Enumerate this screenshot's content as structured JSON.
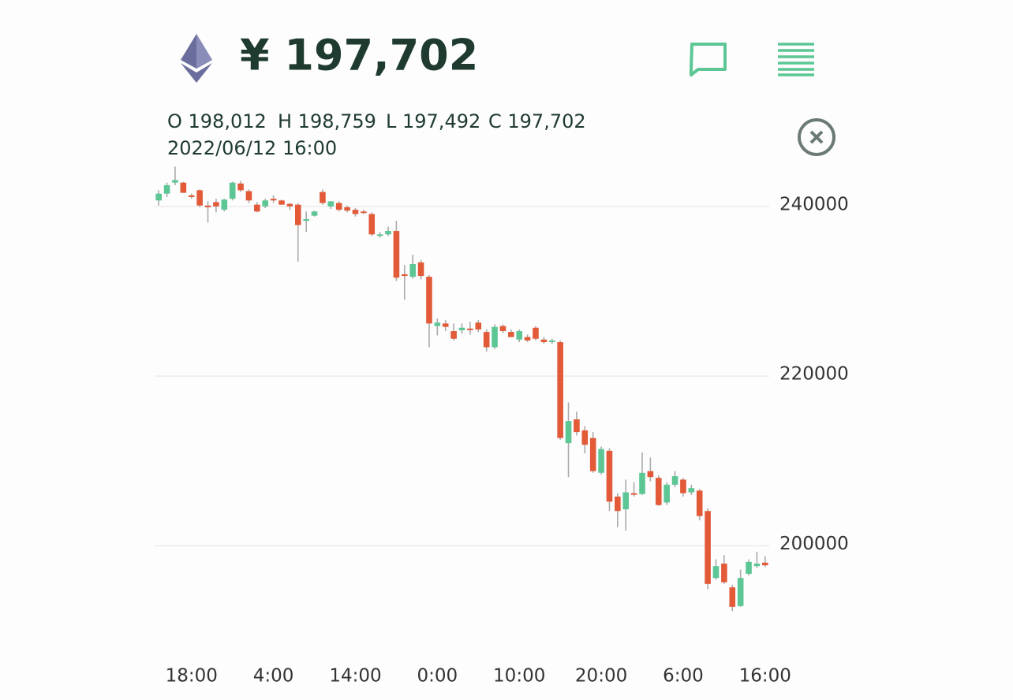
{
  "header": {
    "price": "¥ 197,702"
  },
  "info": {
    "ohlc": [
      "O 198,012",
      "H 198,759",
      "L 197,492",
      "C 197,702"
    ],
    "datetime": "2022/06/12 16:00"
  },
  "chart_data": {
    "type": "candlestick",
    "categories": [
      null,
      null,
      null,
      null,
      "18:00",
      null,
      null,
      null,
      null,
      null,
      null,
      null,
      null,
      null,
      "4:00",
      null,
      null,
      null,
      null,
      null,
      null,
      null,
      null,
      null,
      "14:00",
      null,
      null,
      null,
      null,
      null,
      null,
      null,
      null,
      null,
      "0:00",
      null,
      null,
      null,
      null,
      null,
      null,
      null,
      null,
      null,
      "10:00",
      null,
      null,
      null,
      null,
      null,
      null,
      null,
      null,
      null,
      "20:00",
      null,
      null,
      null,
      null,
      null,
      null,
      null,
      null,
      null,
      "6:00",
      null,
      null,
      null,
      null,
      null,
      null,
      null,
      null,
      null,
      "16:00"
    ],
    "open": [
      240700,
      241500,
      242800,
      242800,
      241300,
      241900,
      240100,
      240500,
      239600,
      240900,
      242700,
      241800,
      240200,
      240000,
      240900,
      240700,
      240300,
      240200,
      238300,
      238900,
      241700,
      240000,
      240400,
      239900,
      239600,
      239400,
      239100,
      236600,
      236700,
      237100,
      232000,
      231700,
      233400,
      231700,
      225900,
      226200,
      225300,
      225400,
      225600,
      226300,
      225200,
      223400,
      225900,
      225200,
      224300,
      224600,
      225700,
      224300,
      224000,
      224000,
      212100,
      214900,
      213600,
      212700,
      208600,
      211200,
      205800,
      204300,
      206200,
      206100,
      208800,
      208000,
      205100,
      207200,
      207800,
      206300,
      206500,
      204100,
      196200,
      197900,
      195100,
      192900,
      196700,
      197600,
      198012
    ],
    "high": [
      241900,
      242800,
      244700,
      242900,
      241500,
      242000,
      240600,
      240900,
      240900,
      242900,
      243000,
      242000,
      240500,
      240900,
      241300,
      240800,
      240400,
      240400,
      239400,
      239500,
      242000,
      240600,
      240600,
      240100,
      239800,
      239600,
      239300,
      237000,
      237600,
      238300,
      233100,
      234300,
      233700,
      231900,
      226800,
      226600,
      226200,
      226200,
      226400,
      226600,
      225500,
      226100,
      226100,
      225500,
      225500,
      224900,
      225900,
      224600,
      224400,
      224200,
      216900,
      215800,
      214100,
      213400,
      211700,
      211500,
      206200,
      207800,
      207500,
      211000,
      210400,
      208300,
      207500,
      208800,
      208000,
      207200,
      206700,
      204400,
      198400,
      198900,
      195400,
      197200,
      198400,
      199300,
      198759
    ],
    "low": [
      240100,
      241100,
      242500,
      241600,
      240900,
      239900,
      238100,
      239300,
      239400,
      240700,
      241700,
      240400,
      239300,
      239800,
      240400,
      240200,
      239600,
      233500,
      237000,
      238800,
      240200,
      239700,
      239400,
      239300,
      238800,
      239100,
      236500,
      236300,
      236500,
      231200,
      229000,
      231500,
      231400,
      223400,
      224800,
      225300,
      224200,
      225000,
      224900,
      225200,
      222900,
      223200,
      225100,
      224600,
      224000,
      224000,
      224200,
      223800,
      223800,
      212500,
      208100,
      213000,
      210900,
      208600,
      208400,
      204100,
      202200,
      201800,
      205800,
      206000,
      207600,
      204700,
      204800,
      206900,
      205800,
      206000,
      203000,
      194900,
      196000,
      195500,
      192300,
      192800,
      196500,
      197400,
      197492
    ],
    "close": [
      241500,
      242500,
      243100,
      241600,
      241100,
      240100,
      239900,
      240000,
      240800,
      242800,
      241900,
      240700,
      239400,
      240700,
      240700,
      240200,
      240000,
      237800,
      238500,
      239400,
      240400,
      240600,
      239600,
      239500,
      239100,
      239300,
      236700,
      236700,
      237100,
      231600,
      231800,
      233200,
      231800,
      226200,
      226300,
      225800,
      224400,
      225700,
      225500,
      225500,
      223400,
      225800,
      225300,
      224600,
      225300,
      224200,
      224400,
      224000,
      224200,
      212700,
      214700,
      213400,
      211900,
      208800,
      211400,
      205200,
      204100,
      206300,
      206100,
      208600,
      208100,
      204800,
      207200,
      208200,
      206200,
      206800,
      203500,
      195500,
      197600,
      195700,
      192800,
      196200,
      198100,
      197900,
      197702
    ],
    "up_color": "#5cc795",
    "down_color": "#e25a38",
    "ylim": [
      190000,
      245000
    ],
    "yticks": [
      200000,
      220000,
      240000
    ],
    "grid": true
  }
}
